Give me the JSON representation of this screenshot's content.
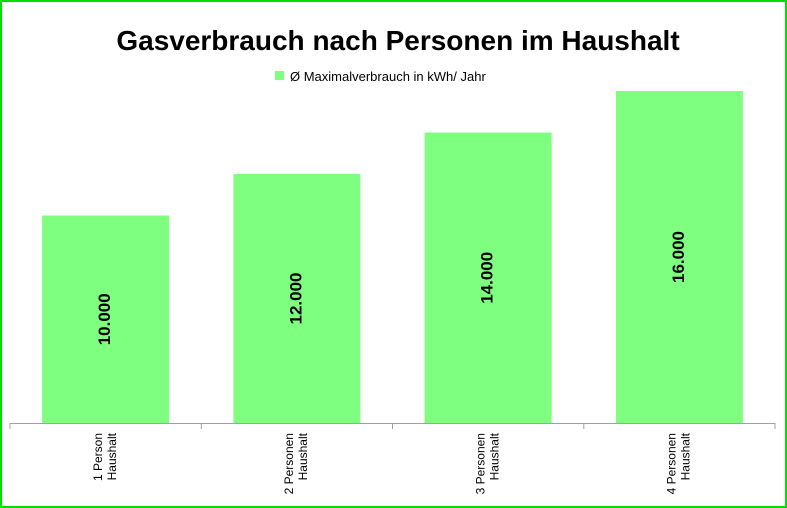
{
  "chart_data": {
    "type": "bar",
    "title": "Gasverbrauch nach Personen im Haushalt",
    "xlabel": "",
    "ylabel": "",
    "categories": [
      [
        "1 Person",
        "Haushalt"
      ],
      [
        "2 Personen",
        "Haushalt"
      ],
      [
        "3 Personen",
        "Haushalt"
      ],
      [
        "4 Personen",
        "Haushalt"
      ]
    ],
    "series": [
      {
        "name": "Ø Maximalverbrauch in kWh/ Jahr",
        "values": [
          10000,
          12000,
          14000,
          16000
        ],
        "labels": [
          "10.000",
          "12.000",
          "14.000",
          "16.000"
        ],
        "color": "#7fff7f"
      }
    ],
    "ylim": [
      0,
      16000
    ],
    "legend_position": "top",
    "grid": false,
    "frame_color": "#00e000"
  }
}
